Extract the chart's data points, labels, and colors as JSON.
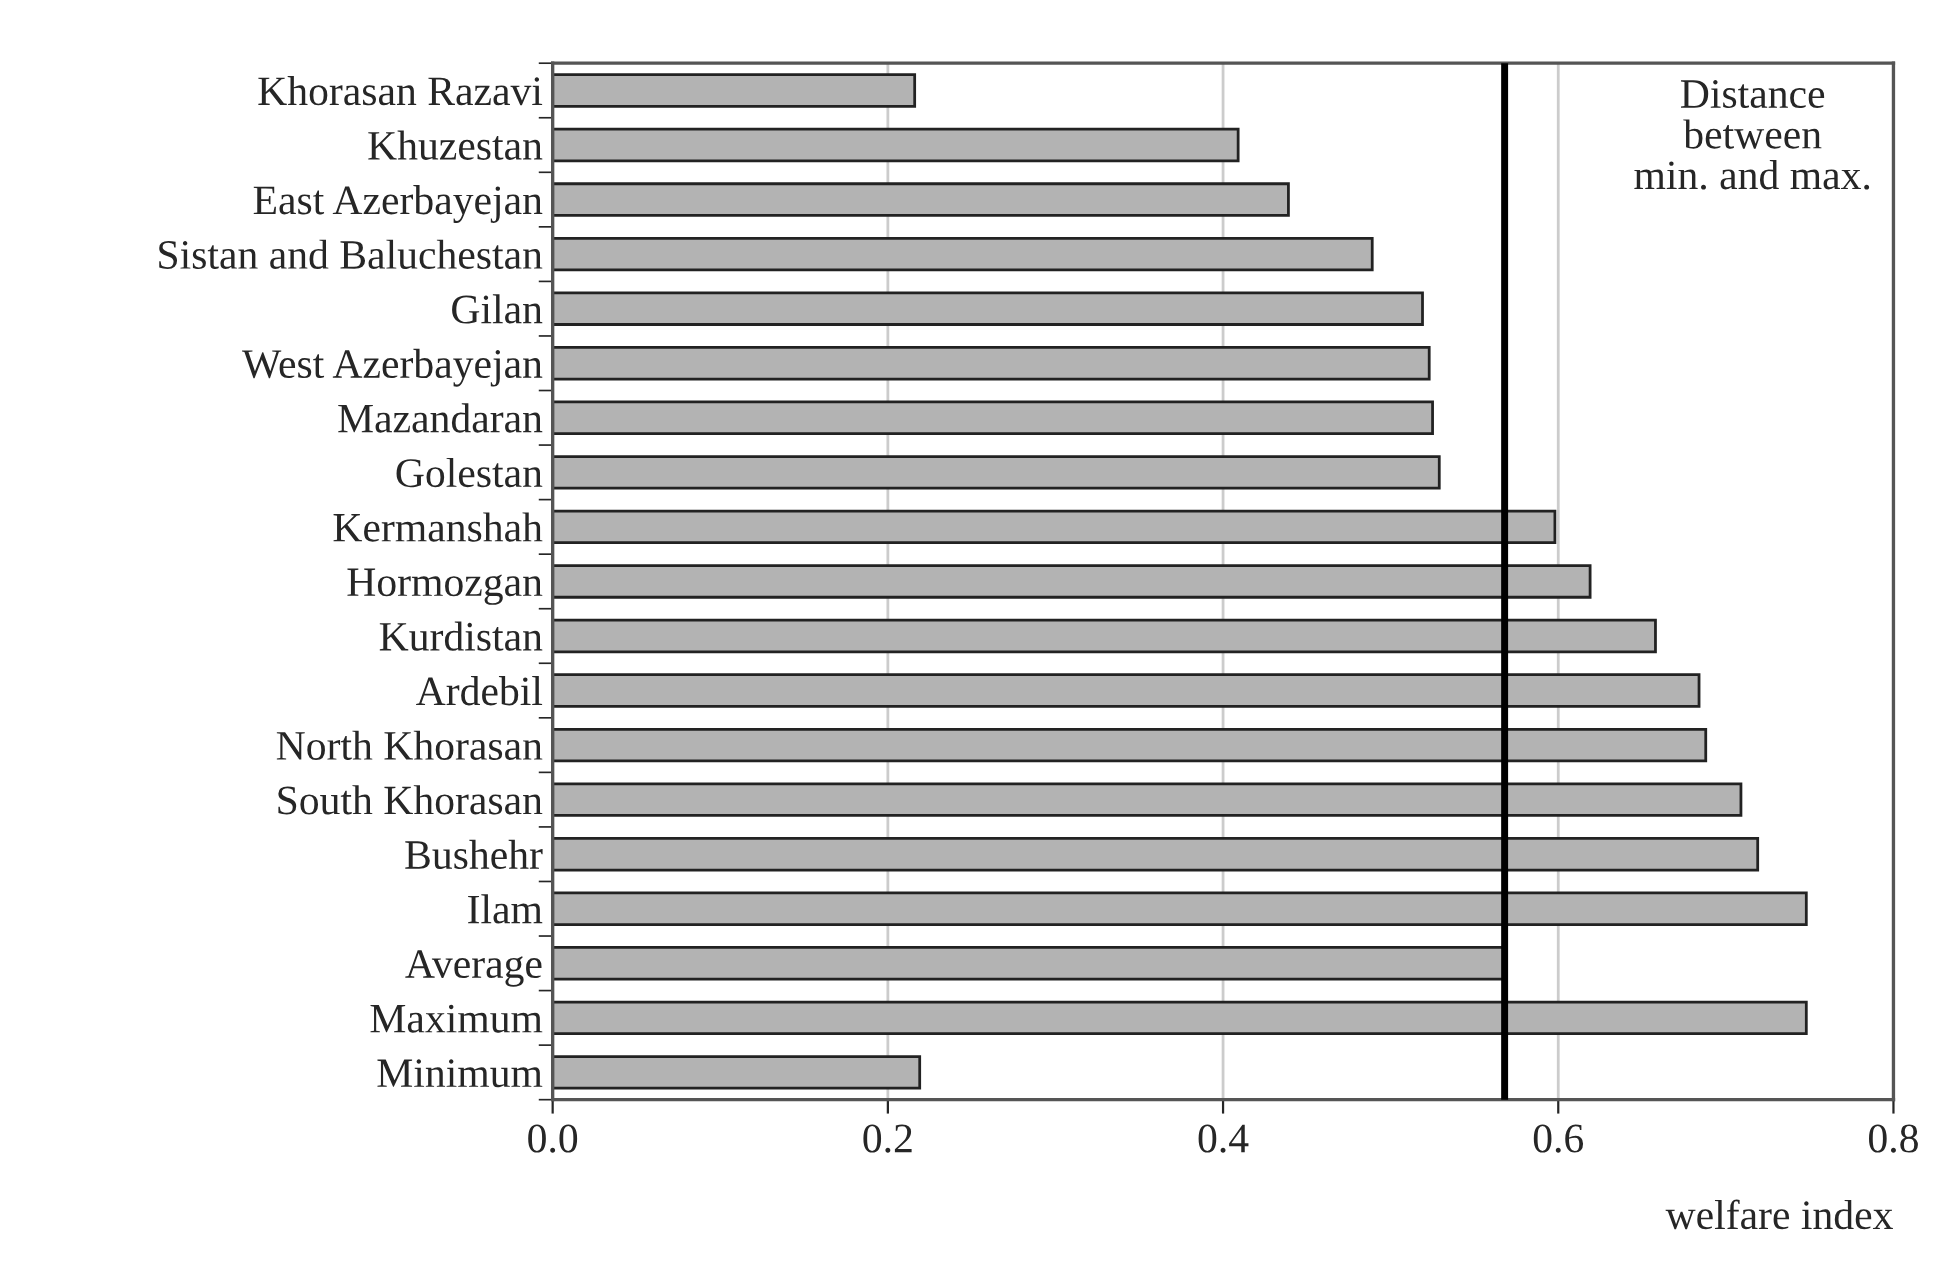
{
  "chart_data": {
    "type": "bar",
    "orientation": "horizontal",
    "categories": [
      "Khorasan Razavi",
      "Khuzestan",
      "East Azerbayejan",
      "Sistan and Baluchestan",
      "Gilan",
      "West Azerbayejan",
      "Mazandaran",
      "Golestan",
      "Kermanshah",
      "Hormozgan",
      "Kurdistan",
      "Ardebil",
      "North Khorasan",
      "South Khorasan",
      "Bushehr",
      "Ilam",
      "Average",
      "Maximum",
      "Minimum"
    ],
    "values": [
      0.216,
      0.409,
      0.439,
      0.489,
      0.519,
      0.523,
      0.525,
      0.529,
      0.598,
      0.619,
      0.658,
      0.684,
      0.688,
      0.709,
      0.719,
      0.748,
      0.568,
      0.748,
      0.219
    ],
    "color": "#b3b3b3",
    "xlim": [
      0,
      0.8
    ],
    "xticks": [
      {
        "value": 0,
        "label": "0.0"
      },
      0.2,
      0.4,
      0.6,
      0.8
    ],
    "xlabel": "welfare index",
    "grid": "x",
    "ref_lines": [
      {
        "axis": "x",
        "value": 0.568,
        "color": "#000000"
      }
    ],
    "annotations": [
      "Distance\nbetween\nmin. and max."
    ]
  }
}
